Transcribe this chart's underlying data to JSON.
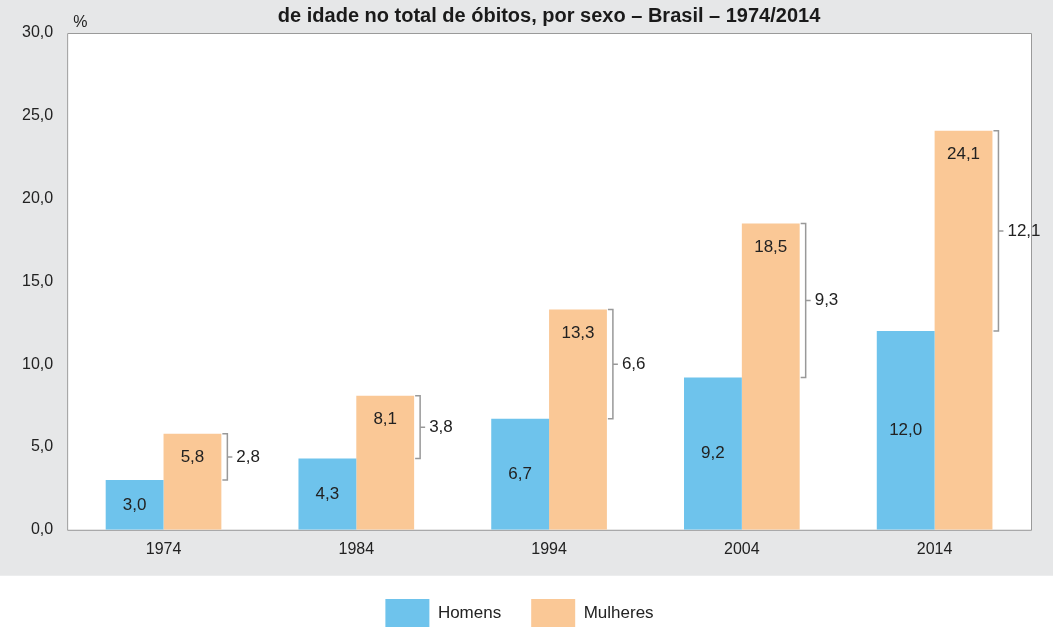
{
  "chart_data": {
    "type": "bar",
    "title": "de idade no total de óbitos, por sexo – Brasil – 1974/2014",
    "ylabel": "%",
    "categories": [
      "1974",
      "1984",
      "1994",
      "2004",
      "2014"
    ],
    "series": [
      {
        "name": "Homens",
        "color": "#6ec3ec",
        "values": [
          3.0,
          4.3,
          6.7,
          9.2,
          12.0
        ],
        "value_labels": [
          "3,0",
          "4,3",
          "6,7",
          "9,2",
          "12,0"
        ]
      },
      {
        "name": "Mulheres",
        "color": "#fac896",
        "values": [
          5.8,
          8.1,
          13.3,
          18.5,
          24.1
        ],
        "value_labels": [
          "5,8",
          "8,1",
          "13,3",
          "18,5",
          "24,1"
        ]
      }
    ],
    "ylim": [
      0,
      30
    ],
    "yticks": [
      {
        "value": 0,
        "label": "0,0"
      },
      {
        "value": 5,
        "label": "5,0"
      },
      {
        "value": 10,
        "label": "10,0"
      },
      {
        "value": 15,
        "label": "15,0"
      },
      {
        "value": 20,
        "label": "20,0"
      },
      {
        "value": 25,
        "label": "25,0"
      },
      {
        "value": 30,
        "label": "30,0"
      }
    ],
    "annotations": [
      "2,8",
      "3,8",
      "6,6",
      "9,3",
      "12,1"
    ],
    "grid": false,
    "legend": "bottom"
  }
}
